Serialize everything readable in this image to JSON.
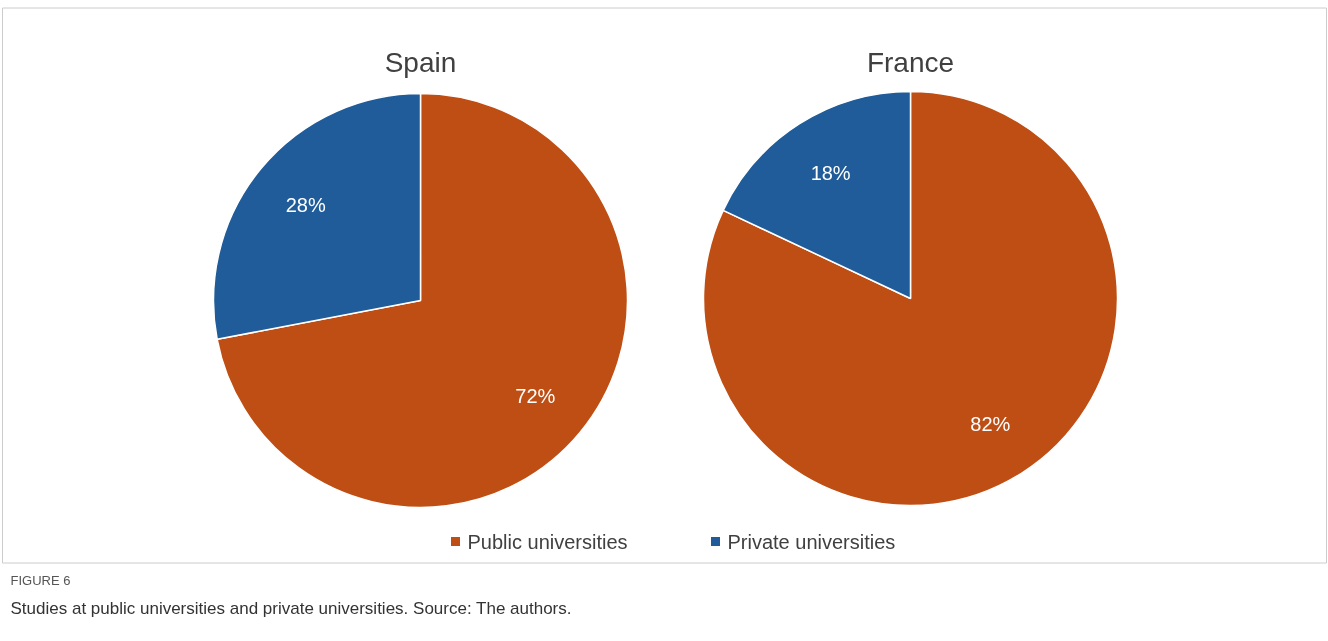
{
  "chart_data": [
    {
      "type": "pie",
      "title": "Spain",
      "categories": [
        "Public universities",
        "Private universities"
      ],
      "values": [
        72,
        28
      ],
      "value_labels": [
        "72%",
        "28%"
      ],
      "colors": [
        "#bf4e14",
        "#1f5c99"
      ],
      "legend": "bottom"
    },
    {
      "type": "pie",
      "title": "France",
      "categories": [
        null,
        null
      ],
      "values": [
        82,
        18
      ],
      "value_labels": [
        "82%",
        "18%"
      ],
      "colors": [
        "#bf4e14",
        "#1f5c99"
      ],
      "annotations": [
        "FIGURE 6",
        "Studies at public universities and private universities. Source: The authors."
      ]
    }
  ]
}
